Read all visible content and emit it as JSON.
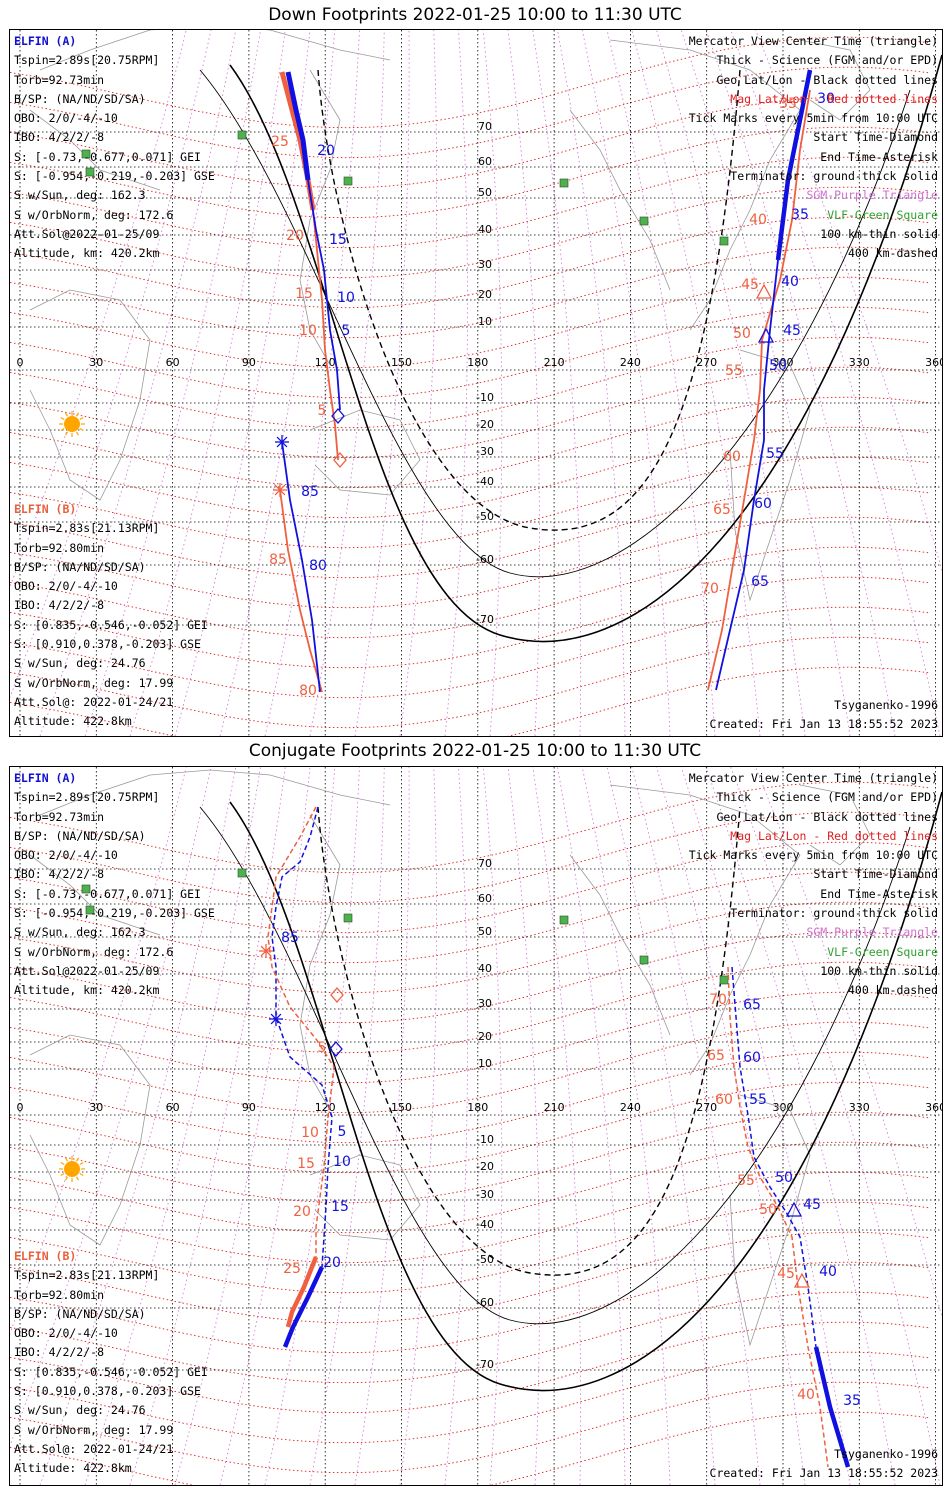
{
  "panels": [
    {
      "title": "Down Footprints 2022-01-25 10:00 to 11:30 UTC",
      "info_a": [
        "ELFIN (A)",
        "Tspin=2.89s[20.75RPM]",
        "Torb=92.73min",
        "B/SP: (NA/ND/SD/SA)",
        "OBO: 2/0/-4/-10",
        "IBO: 4/2/2/-8",
        "S: [-0.73,-0.677,0.071] GEI",
        "S: [-0.954,-0.219,-0.203] GSE",
        "S w/Sun, deg: 162.3",
        "S w/OrbNorm, deg: 172.6",
        "Att.Sol@2022-01-25/09",
        "Altitude, km: 420.2km"
      ],
      "info_b": [
        "ELFIN (B)",
        "Tspin=2.83s[21.13RPM]",
        "Torb=92.80min",
        "B/SP: (NA/ND/SD/SA)",
        "OBO: 2/0/-4/-10",
        "IBO: 4/2/2/-8",
        "S: [0.835,-0.546,-0.052] GEI",
        "S: [0.910,0.378,-0.203] GSE",
        "S w/Sun, deg: 24.76",
        "S w/OrbNorm, deg: 17.99",
        "Att.Sol@: 2022-01-24/21",
        "Altitude: 422.8km"
      ],
      "model": "Tsyganenko-1996",
      "created": "Created: Fri Jan 13 18:55:52 2023",
      "a_labels": [
        "20",
        "15",
        "10",
        "5",
        "30",
        "35",
        "40",
        "45",
        "50",
        "55",
        "60",
        "65",
        "85",
        "80"
      ],
      "b_labels": [
        "25",
        "20",
        "15",
        "10",
        "5",
        "35",
        "40",
        "45",
        "50",
        "55",
        "60",
        "65",
        "70",
        "85",
        "80"
      ]
    },
    {
      "title": "Conjugate Footprints 2022-01-25 10:00 to 11:30 UTC",
      "info_a": [
        "ELFIN (A)",
        "Tspin=2.89s[20.75RPM]",
        "Torb=92.73min",
        "B/SP: (NA/ND/SD/SA)",
        "OBO: 2/0/-4/-10",
        "IBO: 4/2/2/-8",
        "S: [-0.73,-0.677,0.071] GEI",
        "S: [-0.954,-0.219,-0.203] GSE",
        "S w/Sun, deg: 162.3",
        "S w/OrbNorm, deg: 172.6",
        "Att.Sol@2022-01-25/09",
        "Altitude, km: 420.2km"
      ],
      "info_b": [
        "ELFIN (B)",
        "Tspin=2.83s[21.13RPM]",
        "Torb=92.80min",
        "B/SP: (NA/ND/SD/SA)",
        "OBO: 2/0/-4/-10",
        "IBO: 4/2/2/-8",
        "S: [0.835,-0.546,-0.052] GEI",
        "S: [0.910,0.378,-0.203] GSE",
        "S w/Sun, deg: 24.76",
        "S w/OrbNorm, deg: 17.99",
        "Att.Sol@: 2022-01-24/21",
        "Altitude: 422.8km"
      ],
      "model": "Tsyganenko-1996",
      "created": "Created: Fri Jan 13 18:55:52 2023",
      "a_labels": [
        "85",
        "5",
        "10",
        "15",
        "20",
        "65",
        "60",
        "55",
        "50",
        "45",
        "40",
        "35"
      ],
      "b_labels": [
        "5",
        "10",
        "15",
        "20",
        "25",
        "70",
        "65",
        "60",
        "55",
        "50",
        "45",
        "40"
      ]
    }
  ],
  "legend": [
    {
      "text": "Mercator View Center Time (triangle)",
      "color": "#000000"
    },
    {
      "text": "Thick - Science (FGM and/or EPD)",
      "color": "#000000"
    },
    {
      "text": "Geo Lat/Lon - Black dotted lines",
      "color": "#000000"
    },
    {
      "text": "Mag Lat/Lon - Red dotted lines",
      "color": "#e02020"
    },
    {
      "text": "Tick Marks every 5min from 10:00 UTC",
      "color": "#000000"
    },
    {
      "text": "Start Time-Diamond",
      "color": "#000000"
    },
    {
      "text": "End Time-Asterisk",
      "color": "#000000"
    },
    {
      "text": "Terminator: ground-thick solid",
      "color": "#000000"
    },
    {
      "text": "SGM-Purple Triangle",
      "color": "#d070d0"
    },
    {
      "text": "VLF-Green Square",
      "color": "#30a030"
    },
    {
      "text": "100 km-thin solid",
      "color": "#000000"
    },
    {
      "text": "400 km-dashed",
      "color": "#000000"
    }
  ],
  "map": {
    "projection": "Mercator",
    "lon_ticks": [
      "0",
      "30",
      "60",
      "90",
      "120",
      "150",
      "180",
      "210",
      "240",
      "270",
      "300",
      "330",
      "360"
    ],
    "lat_ticks": [
      "70",
      "60",
      "50",
      "40",
      "30",
      "20",
      "10",
      "-10",
      "-20",
      "-30",
      "-40",
      "-50",
      "-60",
      "-70"
    ],
    "colors": {
      "elfin_a": "#1010e0",
      "elfin_b": "#f06040",
      "geo_grid": "#000000",
      "mag_grid": "#e02020",
      "sgm": "#d070d0",
      "vlf": "#30a030",
      "sun": "#ffa500"
    }
  }
}
